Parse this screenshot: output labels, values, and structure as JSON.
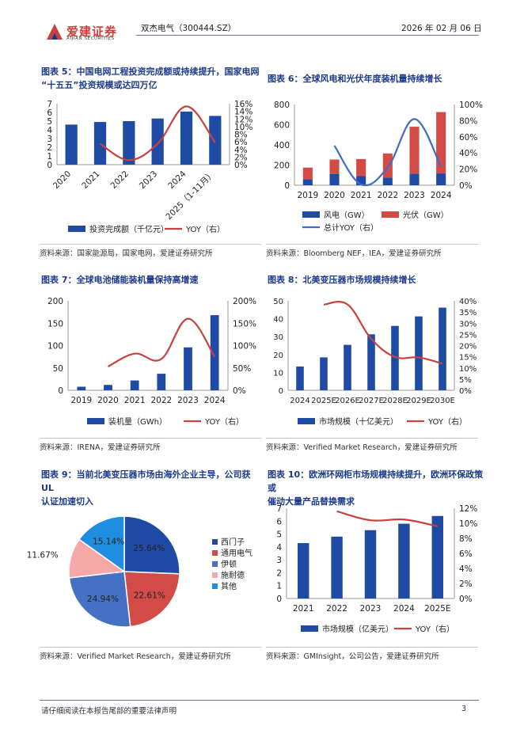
{
  "header": {
    "company_cn": "爱建证券",
    "company_en": "AIJIAN SECURITIES",
    "stock": "双杰电气（300444.SZ）",
    "date": "2026 年 02 月 06 日"
  },
  "footer": {
    "disclaimer": "请仔细阅读在本报告尾部的重要法律声明",
    "page": "3"
  },
  "colors": {
    "bar": "#1f4ba5",
    "line": "#c8413f",
    "bar2": "#d24b47",
    "linebl": "#3d6cc6",
    "title": "#1b3a8c"
  },
  "figures": {
    "f5": {
      "title_l1": "图表 5：中国电网工程投资完成额或持续提升，国家电网",
      "title_l2": "“十五五”投资规模或达四万亿",
      "source": "资料来源：国家能源局，国家电网，爱建证券研究所"
    },
    "f6": {
      "title": "图表 6：全球风电和光伏年度装机量持续增长",
      "source": "资料来源：Bloomberg NEF，IEA，爱建证券研究所"
    },
    "f7": {
      "title": "图表 7：全球电池储能装机量保持高增速",
      "source": "资料来源：IRENA，爱建证券研究所"
    },
    "f8": {
      "title": "图表 8：北美变压器市场规模持续增长",
      "source": "资料来源：Verified Market Research，爱建证券研究所"
    },
    "f9": {
      "title_l1": "图表 9：当前北美变压器市场由海外企业主导，公司获 UL",
      "title_l2": "认证加速切入",
      "source": "资料来源：Verified Market Research，爱建证券研究所"
    },
    "f10": {
      "title_l1": "图表 10：欧洲环网柜市场规模持续提升，欧洲环保政策或",
      "title_l2": "催动大量产品替换需求",
      "source": "资料来源：GMInsight，公司公告，爱建证券研究所"
    }
  },
  "chart_data": [
    {
      "id": "f5",
      "type": "bar",
      "categories": [
        "2020",
        "2021",
        "2022",
        "2023",
        "2024",
        "2025（1-11月）"
      ],
      "series": [
        {
          "name": "投资完成额（千亿元）",
          "type": "bar",
          "axis": "left",
          "values": [
            4.6,
            4.9,
            5.0,
            5.3,
            6.1,
            5.6
          ]
        },
        {
          "name": "YOY（右）",
          "type": "line",
          "axis": "right",
          "values": [
            null,
            5.5,
            1.2,
            5.5,
            15.3,
            5.8
          ]
        }
      ],
      "ylim": [
        0,
        7
      ],
      "yticks": [
        0,
        1,
        2,
        3,
        4,
        5,
        6,
        7
      ],
      "y2lim": [
        0,
        16
      ],
      "y2ticks": [
        "0%",
        "2%",
        "4%",
        "6%",
        "8%",
        "10%",
        "12%",
        "14%",
        "16%"
      ]
    },
    {
      "id": "f6",
      "type": "bar",
      "categories": [
        "2019",
        "2020",
        "2021",
        "2022",
        "2023",
        "2024"
      ],
      "series": [
        {
          "name": "风电（GW）",
          "type": "bar",
          "stack": true,
          "axis": "left",
          "values": [
            60,
            110,
            90,
            75,
            115,
            117
          ]
        },
        {
          "name": "光伏（GW）",
          "type": "bar",
          "stack": true,
          "axis": "left",
          "values": [
            115,
            145,
            170,
            240,
            465,
            608
          ]
        },
        {
          "name": "总计YOY（右）",
          "type": "line",
          "axis": "right",
          "values": [
            null,
            49,
            1,
            22,
            82,
            23
          ]
        }
      ],
      "ylim": [
        0,
        800
      ],
      "yticks": [
        0,
        200,
        400,
        600,
        800
      ],
      "y2lim": [
        0,
        100
      ],
      "y2ticks": [
        "0%",
        "20%",
        "40%",
        "60%",
        "80%",
        "100%"
      ]
    },
    {
      "id": "f7",
      "type": "bar",
      "categories": [
        "2019",
        "2020",
        "2021",
        "2022",
        "2023",
        "2024"
      ],
      "series": [
        {
          "name": "装机量（GWh）",
          "type": "bar",
          "axis": "left",
          "values": [
            8,
            12,
            22,
            37,
            96,
            168
          ]
        },
        {
          "name": "YOY（右）",
          "type": "line",
          "axis": "right",
          "values": [
            null,
            53,
            82,
            70,
            160,
            75
          ]
        }
      ],
      "ylim": [
        0,
        200
      ],
      "yticks": [
        0,
        50,
        100,
        150,
        200
      ],
      "y2lim": [
        0,
        200
      ],
      "y2ticks": [
        "0%",
        "50%",
        "100%",
        "150%",
        "200%"
      ]
    },
    {
      "id": "f8",
      "type": "bar",
      "categories": [
        "2024",
        "2025E",
        "2026E",
        "2027E",
        "2028E",
        "2029E",
        "2030E"
      ],
      "series": [
        {
          "name": "市场规模（十亿美元）",
          "type": "bar",
          "axis": "left",
          "values": [
            13.3,
            18.4,
            25.4,
            31.3,
            36.0,
            41.3,
            46.2
          ]
        },
        {
          "name": "YOY（右）",
          "type": "line",
          "axis": "right",
          "values": [
            null,
            38.3,
            38.4,
            23.0,
            14.9,
            14.7,
            11.9
          ]
        }
      ],
      "ylim": [
        0,
        50
      ],
      "yticks": [
        0,
        10,
        20,
        30,
        40,
        50
      ],
      "y2lim": [
        0,
        40
      ],
      "y2ticks": [
        "0%",
        "5%",
        "10%",
        "15%",
        "20%",
        "25%",
        "30%",
        "35%",
        "40%"
      ]
    },
    {
      "id": "f9",
      "type": "pie",
      "labels": [
        "西门子",
        "通用电气",
        "伊顿",
        "施耐德",
        "其他"
      ],
      "values": [
        25.64,
        22.61,
        24.94,
        11.67,
        15.14
      ],
      "label_text": [
        "25.64%",
        "22.61%",
        "24.94%",
        "11.67%",
        "15.14%"
      ],
      "colors": [
        "#1f4ba5",
        "#d24b47",
        "#4571c4",
        "#f4a9a8",
        "#1f8ee0"
      ]
    },
    {
      "id": "f10",
      "type": "bar",
      "categories": [
        "2021",
        "2022",
        "2023",
        "2024",
        "2025E"
      ],
      "series": [
        {
          "name": "市场规模（亿美元）",
          "type": "bar",
          "axis": "left",
          "values": [
            4.3,
            4.8,
            5.3,
            5.8,
            6.4
          ]
        },
        {
          "name": "YOY（右）",
          "type": "line",
          "axis": "right",
          "values": [
            null,
            11.6,
            10.4,
            10.5,
            9.6
          ]
        }
      ],
      "ylim": [
        0,
        7
      ],
      "yticks": [
        0,
        1,
        2,
        3,
        4,
        5,
        6,
        7
      ],
      "y2lim": [
        0,
        12
      ],
      "y2ticks": [
        "0%",
        "2%",
        "4%",
        "6%",
        "8%",
        "10%",
        "12%"
      ]
    }
  ]
}
